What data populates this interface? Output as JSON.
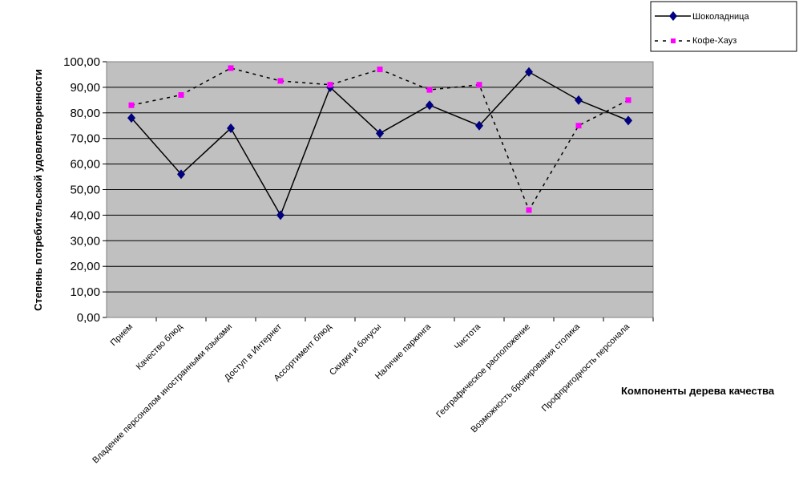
{
  "chart_data": {
    "type": "line",
    "title": "",
    "xlabel": "Компоненты дерева качества",
    "ylabel": "Степень потребительской удовлетворенности",
    "ylim": [
      0,
      100
    ],
    "yticks": [
      "0,00",
      "10,00",
      "20,00",
      "30,00",
      "40,00",
      "50,00",
      "60,00",
      "70,00",
      "80,00",
      "90,00",
      "100,00"
    ],
    "grid": true,
    "legend_position": "top-right",
    "categories": [
      "Прием",
      "Качество блюд",
      "Владение персоналом иностранными языками",
      "Доступ в Интернет",
      "Ассортимент блюд",
      "Скидки и бонусы",
      "Наличие паркинга",
      "Чистота",
      "Географическое расположение",
      "Возможность бронирования столика",
      "Профпригодность персонала"
    ],
    "series": [
      {
        "name": "Шоколадница",
        "color": "#000080",
        "line": "solid",
        "marker": "diamond",
        "values": [
          78,
          56,
          74,
          40,
          90,
          72,
          83,
          75,
          96,
          85,
          77
        ]
      },
      {
        "name": "Кофе-Хауз",
        "color": "#ff00ff",
        "line": "dashed",
        "marker": "square",
        "values": [
          83,
          87,
          97.5,
          92.5,
          91,
          97,
          89,
          91,
          42,
          75,
          85
        ]
      }
    ]
  }
}
